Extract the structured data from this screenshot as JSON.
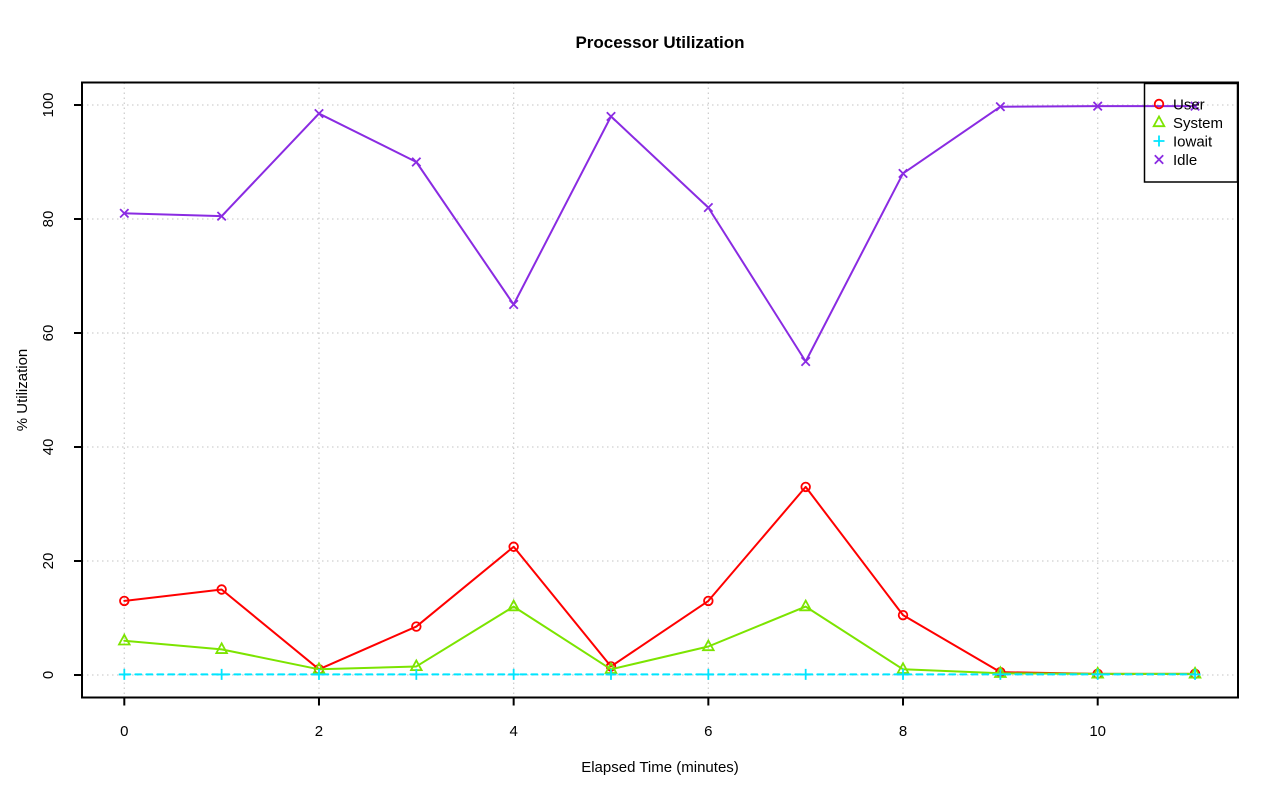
{
  "chart_data": {
    "type": "line",
    "title": "Processor Utilization",
    "xlabel": "Elapsed Time (minutes)",
    "ylabel": "% Utilization",
    "x": [
      0,
      1,
      2,
      3,
      4,
      5,
      6,
      7,
      8,
      9,
      10,
      11
    ],
    "xticks": [
      0,
      2,
      4,
      6,
      8,
      10
    ],
    "yticks": [
      0,
      20,
      40,
      60,
      80,
      100
    ],
    "xlim": [
      -0.44,
      11.44
    ],
    "ylim": [
      -4,
      104
    ],
    "grid": "dotted-lightgray-both-axes",
    "legend_position": "top-right",
    "colors": {
      "user": "#FF0000",
      "system": "#7CE400",
      "iowait": "#00E5FF",
      "idle": "#8A2BE2",
      "gridline": "#CFCFCF",
      "axis": "#000000"
    },
    "series": [
      {
        "name": "User",
        "color": "#FF0000",
        "marker": "circle",
        "line": "solid",
        "values": [
          13,
          15,
          1,
          8.5,
          22.5,
          1.5,
          13,
          33,
          10.5,
          0.5,
          0.2,
          0.2
        ]
      },
      {
        "name": "System",
        "color": "#7CE400",
        "marker": "triangle",
        "line": "solid",
        "values": [
          6,
          4.5,
          1,
          1.5,
          12,
          1,
          5,
          12,
          1,
          0.3,
          0.2,
          0.2
        ]
      },
      {
        "name": "Iowait",
        "color": "#00E5FF",
        "marker": "plus",
        "line": "dashed",
        "values": [
          0.1,
          0.1,
          0.1,
          0.1,
          0.1,
          0.1,
          0.1,
          0.1,
          0.1,
          0.1,
          0.1,
          0.1
        ]
      },
      {
        "name": "Idle",
        "color": "#8A2BE2",
        "marker": "x",
        "line": "solid",
        "values": [
          81,
          80.5,
          98.5,
          90,
          65,
          98,
          82,
          55,
          88,
          99.7,
          99.8,
          99.8
        ]
      }
    ]
  }
}
